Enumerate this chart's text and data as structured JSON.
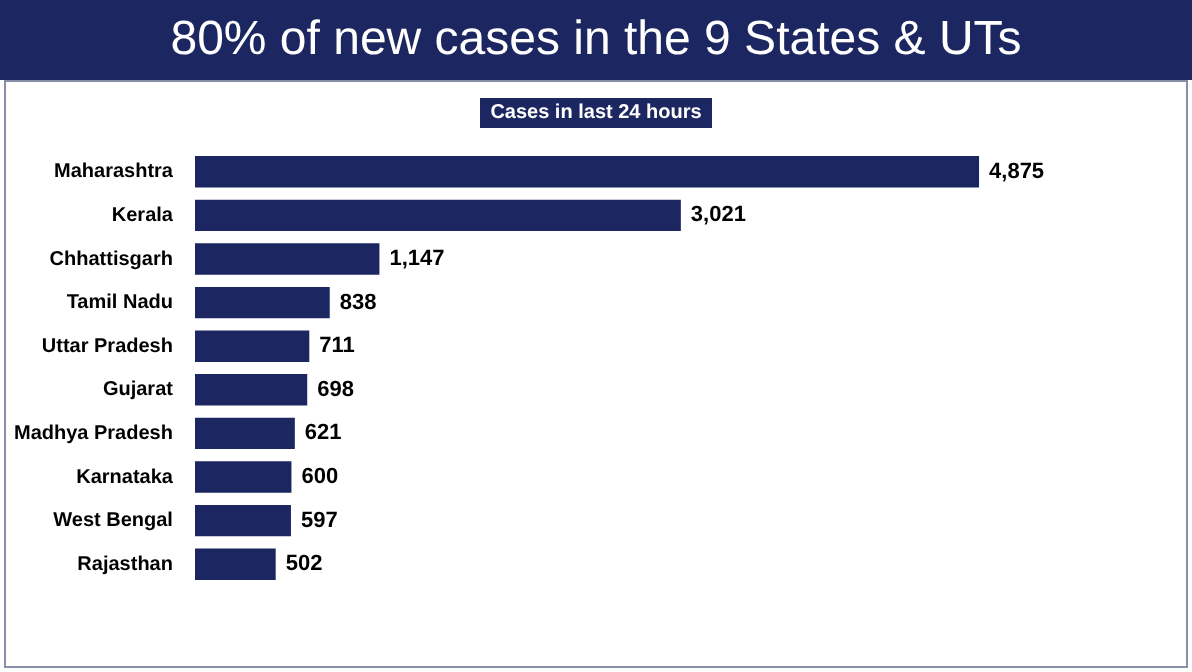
{
  "chart_data": {
    "type": "bar",
    "orientation": "horizontal",
    "title": "80% of new cases in the 9 States & UTs",
    "subtitle": "Cases in last 24 hours",
    "categories": [
      "Maharashtra",
      "Kerala",
      "Chhattisgarh",
      "Tamil Nadu",
      "Uttar Pradesh",
      "Gujarat",
      "Madhya Pradesh",
      "Karnataka",
      "West Bengal",
      "Rajasthan"
    ],
    "values": [
      4875,
      3021,
      1147,
      838,
      711,
      698,
      621,
      600,
      597,
      502
    ],
    "value_labels": [
      "4,875",
      "3,021",
      "1,147",
      "838",
      "711",
      "698",
      "621",
      "600",
      "597",
      "502"
    ],
    "color": "#1c2660"
  }
}
